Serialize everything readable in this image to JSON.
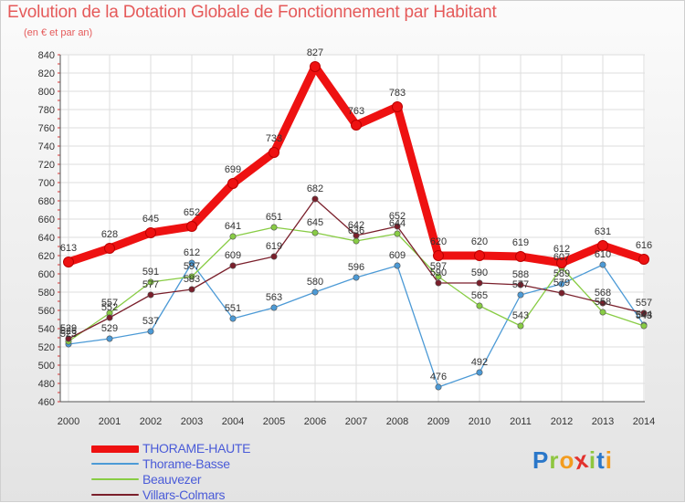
{
  "header": {
    "title": "Evolution de la Dotation Globale de Fonctionnement par Habitant",
    "subtitle": "(en € et par an)"
  },
  "logo": {
    "letters": [
      "P",
      "r",
      "o",
      "x",
      "i",
      "t",
      "i"
    ],
    "colors": [
      "#2a77c9",
      "#8ec63f",
      "#f39c1f",
      "#e2312d",
      "#8ec63f",
      "#2a77c9",
      "#f39c1f"
    ]
  },
  "chart_data": {
    "type": "line",
    "title": "Evolution de la Dotation Globale de Fonctionnement par Habitant",
    "subtitle": "(en € et par an)",
    "x": [
      "2000",
      "2001",
      "2002",
      "2003",
      "2004",
      "2005",
      "2006",
      "2007",
      "2008",
      "2009",
      "2010",
      "2011",
      "2012",
      "2013",
      "2014"
    ],
    "ylim": [
      460,
      840
    ],
    "yticks": [
      460,
      480,
      500,
      520,
      540,
      560,
      580,
      600,
      620,
      640,
      660,
      680,
      700,
      720,
      740,
      760,
      780,
      800,
      820,
      840
    ],
    "grid": true,
    "legend_position": "bottom-left",
    "series": [
      {
        "name": "THORAME-HAUTE",
        "color": "#ee1111",
        "values": [
          613,
          628,
          645,
          652,
          699,
          733,
          827,
          763,
          783,
          620,
          620,
          619,
          612,
          631,
          616
        ]
      },
      {
        "name": "Thorame-Basse",
        "color": "#4c9ad6",
        "values": [
          523,
          529,
          537,
          612,
          551,
          563,
          580,
          596,
          609,
          476,
          492,
          577,
          589,
          610,
          544
        ]
      },
      {
        "name": "Beauvezer",
        "color": "#88cc44",
        "values": [
          526,
          557,
          591,
          597,
          641,
          651,
          645,
          636,
          644,
          597,
          565,
          543,
          607,
          558,
          543
        ]
      },
      {
        "name": "Villars-Colmars",
        "color": "#7a1f2b",
        "values": [
          529,
          552,
          577,
          583,
          609,
          619,
          682,
          642,
          652,
          590,
          590,
          588,
          579,
          568,
          557
        ]
      }
    ]
  }
}
